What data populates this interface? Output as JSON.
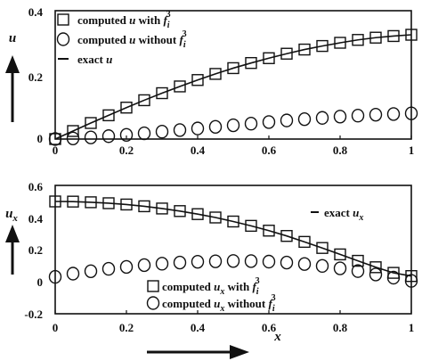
{
  "chart_data": [
    {
      "type": "line",
      "xlim": [
        0,
        1
      ],
      "ylim": [
        0,
        0.4
      ],
      "xticks": [
        "0",
        "0.2",
        "0.4",
        "0.6",
        "0.8",
        "1"
      ],
      "yticks": [
        "0",
        "0.2",
        "0.4"
      ],
      "ylabel": "u",
      "legend_position": "top-left",
      "legend": [
        {
          "marker": "square",
          "text_a": "computed",
          "var": "u",
          "text_b": "with",
          "f": "f",
          "sub": "i",
          "sup": "3"
        },
        {
          "marker": "circle",
          "text_a": "computed",
          "var": "u",
          "text_b": "without",
          "f": "f",
          "sub": "i",
          "sup": "3"
        },
        {
          "marker": "line",
          "text_a": "exact",
          "var": "u"
        }
      ],
      "x": [
        0,
        0.05,
        0.1,
        0.15,
        0.2,
        0.25,
        0.3,
        0.35,
        0.4,
        0.45,
        0.5,
        0.55,
        0.6,
        0.65,
        0.7,
        0.75,
        0.8,
        0.85,
        0.9,
        0.95,
        1.0
      ],
      "series": [
        {
          "marker": "square",
          "values": [
            0,
            0.025,
            0.05,
            0.074,
            0.098,
            0.121,
            0.143,
            0.164,
            0.184,
            0.203,
            0.221,
            0.237,
            0.252,
            0.266,
            0.279,
            0.29,
            0.3,
            0.309,
            0.316,
            0.321,
            0.325
          ]
        },
        {
          "marker": "circle",
          "values": [
            0,
            0.002,
            0.005,
            0.009,
            0.013,
            0.018,
            0.023,
            0.028,
            0.033,
            0.038,
            0.043,
            0.048,
            0.053,
            0.058,
            0.062,
            0.066,
            0.07,
            0.073,
            0.076,
            0.078,
            0.08
          ]
        },
        {
          "marker": "line",
          "values": [
            0,
            0.025,
            0.05,
            0.074,
            0.098,
            0.121,
            0.143,
            0.164,
            0.184,
            0.203,
            0.221,
            0.237,
            0.252,
            0.266,
            0.279,
            0.29,
            0.3,
            0.309,
            0.316,
            0.321,
            0.325
          ]
        }
      ]
    },
    {
      "type": "line",
      "xlim": [
        0,
        1
      ],
      "ylim": [
        -0.2,
        0.6
      ],
      "xticks": [
        "0",
        "0.2",
        "0.4",
        "0.6",
        "0.8",
        "1"
      ],
      "yticks": [
        "0.6",
        "0.4",
        "0.2",
        "0",
        "-0.2"
      ],
      "ylabel": "u",
      "ylabel_sub": "x",
      "xlabel": "x",
      "legend": [
        {
          "marker": "line",
          "text_a": "exact",
          "var": "u",
          "var_sub": "x"
        },
        {
          "marker": "square",
          "text_a": "computed",
          "var": "u",
          "var_sub": "x",
          "text_b": "with",
          "f": "f",
          "sub": "i",
          "sup": "3"
        },
        {
          "marker": "circle",
          "text_a": "computed",
          "var": "u",
          "var_sub": "x",
          "text_b": "without",
          "f": "f",
          "sub": "i",
          "sup": "3"
        }
      ],
      "x": [
        0,
        0.05,
        0.1,
        0.15,
        0.2,
        0.25,
        0.3,
        0.35,
        0.4,
        0.45,
        0.5,
        0.55,
        0.6,
        0.65,
        0.7,
        0.75,
        0.8,
        0.85,
        0.9,
        0.95,
        1.0
      ],
      "series": [
        {
          "marker": "square",
          "values": [
            0.5,
            0.499,
            0.495,
            0.489,
            0.481,
            0.47,
            0.456,
            0.44,
            0.421,
            0.4,
            0.375,
            0.348,
            0.318,
            0.285,
            0.248,
            0.21,
            0.17,
            0.13,
            0.09,
            0.055,
            0.035
          ]
        },
        {
          "marker": "circle",
          "values": [
            0.03,
            0.05,
            0.065,
            0.08,
            0.092,
            0.103,
            0.112,
            0.119,
            0.124,
            0.127,
            0.129,
            0.128,
            0.125,
            0.119,
            0.11,
            0.098,
            0.083,
            0.066,
            0.045,
            0.025,
            0.005
          ]
        },
        {
          "marker": "line",
          "values": [
            0.5,
            0.499,
            0.495,
            0.489,
            0.481,
            0.47,
            0.456,
            0.44,
            0.421,
            0.4,
            0.375,
            0.348,
            0.318,
            0.285,
            0.248,
            0.21,
            0.17,
            0.13,
            0.09,
            0.055,
            0.035
          ]
        }
      ]
    }
  ]
}
